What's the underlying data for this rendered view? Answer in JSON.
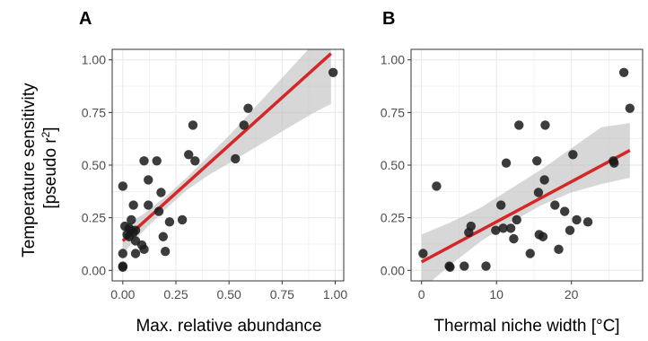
{
  "shared_ylabel": {
    "line1": "Temperature sensitivity",
    "line2_prefix": "[pseudo r",
    "line2_sup": "2",
    "line2_suffix": "]"
  },
  "colors": {
    "points": "#1a1a1a",
    "fit_line": "#d62728",
    "ci_band": "#bdbdbd",
    "grid": "#ebebeb",
    "border": "#333333"
  },
  "chart_data": [
    {
      "type": "scatter",
      "panel": "A",
      "xlabel": "Max. relative abundance",
      "xlim": [
        -0.05,
        1.04
      ],
      "ylim": [
        -0.05,
        1.05
      ],
      "x_ticks": [
        0,
        0.25,
        0.5,
        0.75,
        1
      ],
      "x_tick_labels": [
        "0.00",
        "0.25",
        "0.50",
        "0.75",
        "1.00"
      ],
      "y_ticks": [
        0,
        0.25,
        0.5,
        0.75,
        1
      ],
      "y_tick_labels": [
        "0.00",
        "0.25",
        "0.50",
        "0.75",
        "1.00"
      ],
      "grid": true,
      "points": [
        [
          0.0,
          0.4
        ],
        [
          0.0,
          0.08
        ],
        [
          0.0,
          0.02
        ],
        [
          0.0,
          0.015
        ],
        [
          0.01,
          0.21
        ],
        [
          0.02,
          0.17
        ],
        [
          0.03,
          0.2
        ],
        [
          0.03,
          0.16
        ],
        [
          0.04,
          0.24
        ],
        [
          0.04,
          0.19
        ],
        [
          0.05,
          0.18
        ],
        [
          0.05,
          0.31
        ],
        [
          0.06,
          0.14
        ],
        [
          0.06,
          0.08
        ],
        [
          0.06,
          0.19
        ],
        [
          0.09,
          0.12
        ],
        [
          0.1,
          0.52
        ],
        [
          0.1,
          0.1
        ],
        [
          0.12,
          0.43
        ],
        [
          0.12,
          0.31
        ],
        [
          0.16,
          0.52
        ],
        [
          0.17,
          0.28
        ],
        [
          0.18,
          0.37
        ],
        [
          0.19,
          0.16
        ],
        [
          0.2,
          0.09
        ],
        [
          0.22,
          0.23
        ],
        [
          0.28,
          0.24
        ],
        [
          0.31,
          0.55
        ],
        [
          0.33,
          0.69
        ],
        [
          0.34,
          0.52
        ],
        [
          0.53,
          0.53
        ],
        [
          0.57,
          0.69
        ],
        [
          0.59,
          0.77
        ],
        [
          0.99,
          0.94
        ]
      ],
      "fit_line": {
        "x": [
          0.0,
          0.98
        ],
        "y": [
          0.14,
          1.03
        ]
      },
      "ci_band": {
        "x": [
          0.0,
          0.1,
          0.2,
          0.3,
          0.4,
          0.5,
          0.6,
          0.7,
          0.8,
          0.9,
          0.98
        ],
        "lower": [
          0.08,
          0.19,
          0.29,
          0.38,
          0.45,
          0.51,
          0.57,
          0.63,
          0.69,
          0.75,
          0.79
        ],
        "upper": [
          0.2,
          0.27,
          0.35,
          0.44,
          0.54,
          0.64,
          0.75,
          0.86,
          0.97,
          1.08,
          1.17
        ]
      }
    },
    {
      "type": "scatter",
      "panel": "B",
      "xlabel": "Thermal niche width [°C]",
      "xlim": [
        -1.4,
        29.5
      ],
      "ylim": [
        -0.05,
        1.05
      ],
      "x_ticks": [
        0,
        10,
        20
      ],
      "x_tick_labels": [
        "0",
        "10",
        "20"
      ],
      "y_ticks": [
        0,
        0.25,
        0.5,
        0.75,
        1
      ],
      "y_tick_labels": [
        "0.00",
        "0.25",
        "0.50",
        "0.75",
        "1.00"
      ],
      "grid": true,
      "points": [
        [
          0.2,
          0.08
        ],
        [
          2.0,
          0.4
        ],
        [
          3.7,
          0.02
        ],
        [
          3.8,
          0.015
        ],
        [
          5.7,
          0.02
        ],
        [
          6.3,
          0.18
        ],
        [
          6.6,
          0.21
        ],
        [
          8.6,
          0.02
        ],
        [
          9.9,
          0.19
        ],
        [
          10.6,
          0.31
        ],
        [
          10.9,
          0.2
        ],
        [
          11.3,
          0.51
        ],
        [
          11.9,
          0.2
        ],
        [
          12.3,
          0.15
        ],
        [
          12.7,
          0.24
        ],
        [
          13.0,
          0.69
        ],
        [
          14.5,
          0.08
        ],
        [
          15.4,
          0.52
        ],
        [
          15.6,
          0.37
        ],
        [
          15.7,
          0.17
        ],
        [
          16.2,
          0.16
        ],
        [
          16.4,
          0.43
        ],
        [
          16.5,
          0.69
        ],
        [
          17.8,
          0.31
        ],
        [
          18.3,
          0.1
        ],
        [
          19.1,
          0.28
        ],
        [
          19.8,
          0.19
        ],
        [
          20.2,
          0.55
        ],
        [
          20.7,
          0.24
        ],
        [
          22.2,
          0.23
        ],
        [
          25.6,
          0.52
        ],
        [
          25.7,
          0.51
        ],
        [
          27.0,
          0.94
        ],
        [
          27.8,
          0.77
        ]
      ],
      "fit_line": {
        "x": [
          0.0,
          27.8
        ],
        "y": [
          0.04,
          0.57
        ]
      },
      "ci_band": {
        "x": [
          0.0,
          4.0,
          8.0,
          12.0,
          16.0,
          20.0,
          24.0,
          27.8
        ],
        "lower": [
          -0.09,
          0.03,
          0.14,
          0.23,
          0.31,
          0.37,
          0.41,
          0.44
        ],
        "upper": [
          0.17,
          0.23,
          0.3,
          0.39,
          0.48,
          0.58,
          0.68,
          0.7
        ]
      }
    }
  ]
}
